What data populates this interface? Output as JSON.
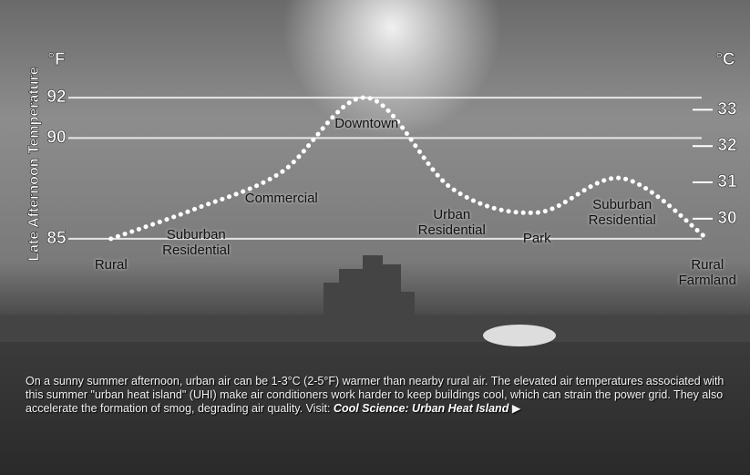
{
  "chart_data": {
    "type": "line",
    "y_label": "Late Afternoon Temperature",
    "y_unit": "°F",
    "y2_unit": "°C",
    "categories": [
      "Rural",
      "Suburban Residential",
      "Commercial",
      "Downtown",
      "Urban Residential",
      "Park",
      "Suburban Residential",
      "Rural Farmland"
    ],
    "values": [
      85,
      86.5,
      88.3,
      92,
      87.5,
      86.3,
      88,
      85
    ],
    "color": "#ffffff",
    "ylim": [
      84,
      93
    ],
    "yticks": [
      85,
      90,
      92
    ],
    "y2lim": [
      28.89,
      33.89
    ],
    "y2ticks": [
      30,
      31,
      32,
      33
    ],
    "grid": true,
    "caption": "On a sunny summer afternoon, urban air can be 1-3°C (2-5°F) warmer than nearby rural air. The elevated air temperatures associated with this summer \"urban heat island\" (UHI) make air conditioners work harder to keep buildings cool, which can strain the power grid. They also accelerate the formation of smog, degrading air quality. Visit:",
    "link_text": "Cool Science: Urban Heat Island"
  }
}
